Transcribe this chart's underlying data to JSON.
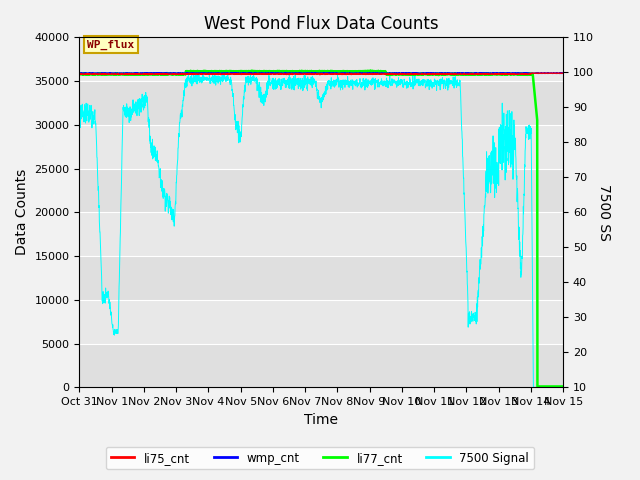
{
  "title": "West Pond Flux Data Counts",
  "xlabel": "Time",
  "ylabel_left": "Data Counts",
  "ylabel_right": "7500 SS",
  "ylim_left": [
    0,
    40000
  ],
  "ylim_right": [
    10,
    110
  ],
  "xlim": [
    0,
    15
  ],
  "x_tick_labels": [
    "Oct 31",
    "Nov 1",
    "Nov 2",
    "Nov 3",
    "Nov 4",
    "Nov 5",
    "Nov 6",
    "Nov 7",
    "Nov 8",
    "Nov 9",
    "Nov 10",
    "Nov 11",
    "Nov 12",
    "Nov 13",
    "Nov 14",
    "Nov 15"
  ],
  "legend_entries": [
    "li75_cnt",
    "wmp_cnt",
    "li77_cnt",
    "7500 Signal"
  ],
  "legend_colors": [
    "red",
    "blue",
    "green",
    "cyan"
  ],
  "wp_flux_label": "WP_flux",
  "bg_color": "#e8e8e8",
  "alt_band_color": "#d3d3d3",
  "title_fontsize": 12,
  "axis_label_fontsize": 10,
  "tick_fontsize": 8
}
